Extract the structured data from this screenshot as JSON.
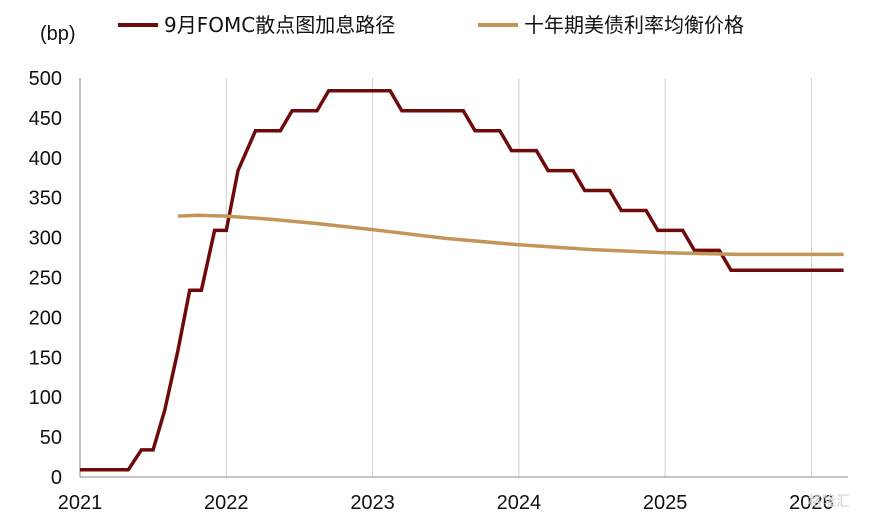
{
  "chart_data": {
    "type": "line",
    "ylabel": "(bp)",
    "ylim": [
      0,
      500
    ],
    "yticks": [
      0,
      50,
      100,
      150,
      200,
      250,
      300,
      350,
      400,
      450,
      500
    ],
    "xlim": [
      2021.0,
      2026.25
    ],
    "xticks": [
      2021,
      2022,
      2023,
      2024,
      2025,
      2026
    ],
    "grid": "vertical",
    "legend_position": "top",
    "watermark": "格隆汇",
    "series": [
      {
        "name": "9月FOMC散点图加息路径",
        "color": "#6e0a0a",
        "x": [
          2021.0,
          2021.33,
          2021.42,
          2021.5,
          2021.58,
          2021.67,
          2021.75,
          2021.83,
          2021.92,
          2022.0,
          2022.08,
          2022.2,
          2022.37,
          2022.45,
          2022.62,
          2022.7,
          2022.95,
          2023.12,
          2023.2,
          2023.62,
          2023.7,
          2023.87,
          2023.95,
          2024.12,
          2024.2,
          2024.37,
          2024.45,
          2024.62,
          2024.7,
          2024.87,
          2024.95,
          2025.12,
          2025.2,
          2025.37,
          2025.45,
          2026.22
        ],
        "values": [
          9,
          9,
          34,
          34,
          84,
          159,
          234,
          234,
          309,
          309,
          384,
          434,
          434,
          459,
          459,
          484,
          484,
          484,
          459,
          459,
          434,
          434,
          409,
          409,
          384,
          384,
          359,
          359,
          334,
          334,
          309,
          309,
          284,
          284,
          259,
          259
        ]
      },
      {
        "name": "十年期美债利率均衡价格",
        "color": "#c49558",
        "x": [
          2021.67,
          2021.8,
          2022.0,
          2022.3,
          2022.6,
          2023.0,
          2023.5,
          2024.0,
          2024.5,
          2025.0,
          2025.5,
          2026.22
        ],
        "values": [
          327,
          328,
          327,
          323,
          318,
          310,
          299,
          291,
          285,
          281,
          279,
          279
        ]
      }
    ]
  }
}
